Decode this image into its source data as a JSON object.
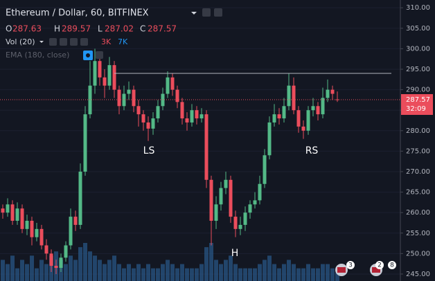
{
  "chart_data": {
    "type": "candlestick",
    "title": "Ethereum / Dollar, 60, BITFINEX",
    "ohlc_labels": [
      "O",
      "H",
      "L",
      "C"
    ],
    "indicators": {
      "volume": "Vol (20)",
      "volume_up": "3K",
      "volume_down": "7K",
      "ema": "EMA (180, close)"
    },
    "open": [
      261,
      260,
      262,
      258,
      261,
      256,
      258,
      254,
      256,
      252,
      250,
      247,
      246.5,
      249,
      252,
      259,
      257,
      270,
      284,
      291,
      297,
      293,
      291,
      296,
      290,
      286,
      289,
      290,
      286,
      284,
      282,
      280.5,
      283,
      286,
      289,
      293,
      290,
      287,
      283,
      282,
      285,
      283,
      284,
      268,
      258,
      262,
      266,
      268,
      259,
      256,
      257,
      260,
      262,
      263,
      267,
      274,
      282,
      284,
      283,
      286,
      291,
      285,
      281,
      280,
      285,
      286,
      284,
      288,
      290,
      287.63
    ],
    "high": [
      262,
      263.5,
      263,
      262.5,
      262,
      259.5,
      259,
      257.5,
      257,
      253.5,
      251,
      248.5,
      250,
      253,
      261,
      260.5,
      272,
      286,
      297,
      300,
      299,
      295,
      298,
      297,
      291,
      291,
      292,
      291,
      287.5,
      285,
      283.5,
      284.5,
      287.5,
      290.5,
      294.5,
      294,
      291,
      288,
      284.5,
      286.5,
      286,
      285.5,
      285,
      269,
      264,
      267.5,
      270,
      269,
      260.5,
      259,
      261.5,
      263,
      265,
      269,
      275.5,
      283.5,
      286.5,
      285.5,
      288,
      294,
      293,
      286,
      282.5,
      286,
      288,
      287,
      290.5,
      292.5,
      291,
      289.57
    ],
    "low": [
      258.5,
      259,
      257,
      257,
      255,
      254.5,
      252,
      253,
      251,
      248.5,
      245.5,
      245,
      245.5,
      248,
      251,
      255.5,
      256,
      269,
      283,
      289,
      291,
      288,
      290,
      288,
      284,
      285,
      287.5,
      284.5,
      281,
      280,
      277.5,
      279,
      282,
      285,
      288,
      288.5,
      285.5,
      281.5,
      280,
      281,
      281.5,
      282,
      266,
      252,
      256,
      260.5,
      264.5,
      257.5,
      254,
      254.5,
      255.5,
      258.5,
      261,
      262,
      266,
      273,
      281,
      281.5,
      282,
      285,
      284,
      279.5,
      278,
      279,
      283.5,
      282.5,
      283,
      287,
      287.5,
      287.02
    ],
    "close": [
      260,
      262,
      258,
      261,
      256,
      258,
      254,
      256,
      252,
      250,
      247,
      246.5,
      249,
      252,
      259,
      257,
      270,
      284,
      291,
      297,
      293,
      291,
      296,
      290,
      286,
      289,
      290,
      286,
      284,
      282,
      280.5,
      283,
      286,
      289,
      293,
      290,
      287,
      283,
      282,
      285,
      283,
      284,
      268,
      258,
      262,
      266,
      268,
      259,
      256,
      257,
      260,
      262,
      263,
      267,
      274,
      282,
      284,
      283,
      286,
      291,
      285,
      281,
      280,
      285,
      286,
      284,
      288,
      290,
      289,
      287.57
    ],
    "volume": [
      5,
      4,
      6,
      3,
      5,
      4,
      6,
      3,
      5,
      4,
      6,
      7,
      5,
      4,
      6,
      5,
      8,
      9,
      7,
      6,
      5,
      4,
      5,
      6,
      4,
      3,
      4,
      3,
      4,
      3,
      4,
      3,
      3,
      4,
      5,
      4,
      3,
      4,
      3,
      3,
      3,
      4,
      8,
      9,
      5,
      4,
      5,
      6,
      4,
      3,
      3,
      3,
      3,
      4,
      5,
      6,
      4,
      3,
      4,
      5,
      4,
      3,
      3,
      4,
      3,
      3,
      4,
      4,
      3,
      2
    ],
    "up_color": "#53b987",
    "down_color": "#eb4d5c",
    "ylim": [
      243.3,
      311.9
    ],
    "yticks": [
      {
        "value": 245,
        "label": "245.00"
      },
      {
        "value": 250,
        "label": "250.00"
      },
      {
        "value": 255,
        "label": "255.00"
      },
      {
        "value": 260,
        "label": "260.00"
      },
      {
        "value": 265,
        "label": "265.00"
      },
      {
        "value": 270,
        "label": "270.00"
      },
      {
        "value": 275,
        "label": "275.00"
      },
      {
        "value": 280,
        "label": "280.00"
      },
      {
        "value": 285,
        "label": "285.00"
      },
      {
        "value": 290,
        "label": "290.00"
      },
      {
        "value": 295,
        "label": "295.00"
      },
      {
        "value": 300,
        "label": "300.00"
      },
      {
        "value": 305,
        "label": "305.00"
      },
      {
        "value": 310,
        "label": "310.00"
      }
    ],
    "grid": true,
    "neckline": 294,
    "countdown": "32:09",
    "annotations": [
      "LS",
      "H",
      "RS"
    ],
    "badges": [
      3,
      2,
      8
    ]
  }
}
